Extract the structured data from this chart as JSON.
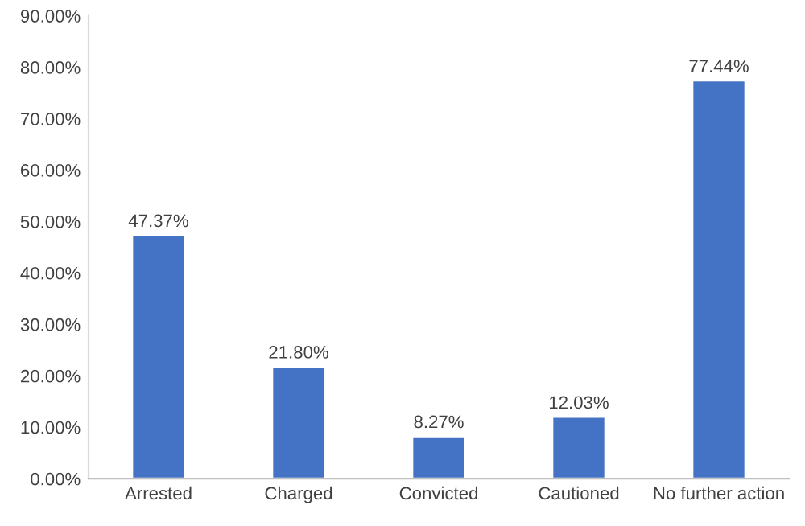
{
  "chart_data": {
    "type": "bar",
    "categories": [
      "Arrested",
      "Charged",
      "Convicted",
      "Cautioned",
      "No further action"
    ],
    "values": [
      47.37,
      21.8,
      8.27,
      12.03,
      77.44
    ],
    "value_labels": [
      "47.37%",
      "21.80%",
      "8.27%",
      "12.03%",
      "77.44%"
    ],
    "color": "#4472c4",
    "ylim": [
      0,
      90
    ],
    "yticks": [
      {
        "value": 0,
        "label": "0.00%"
      },
      {
        "value": 10,
        "label": "10.00%"
      },
      {
        "value": 20,
        "label": "20.00%"
      },
      {
        "value": 30,
        "label": "30.00%"
      },
      {
        "value": 40,
        "label": "40.00%"
      },
      {
        "value": 50,
        "label": "50.00%"
      },
      {
        "value": 60,
        "label": "60.00%"
      },
      {
        "value": 70,
        "label": "70.00%"
      },
      {
        "value": 80,
        "label": "80.00%"
      },
      {
        "value": 90,
        "label": "90.00%"
      }
    ],
    "grid": false,
    "legend": false
  }
}
